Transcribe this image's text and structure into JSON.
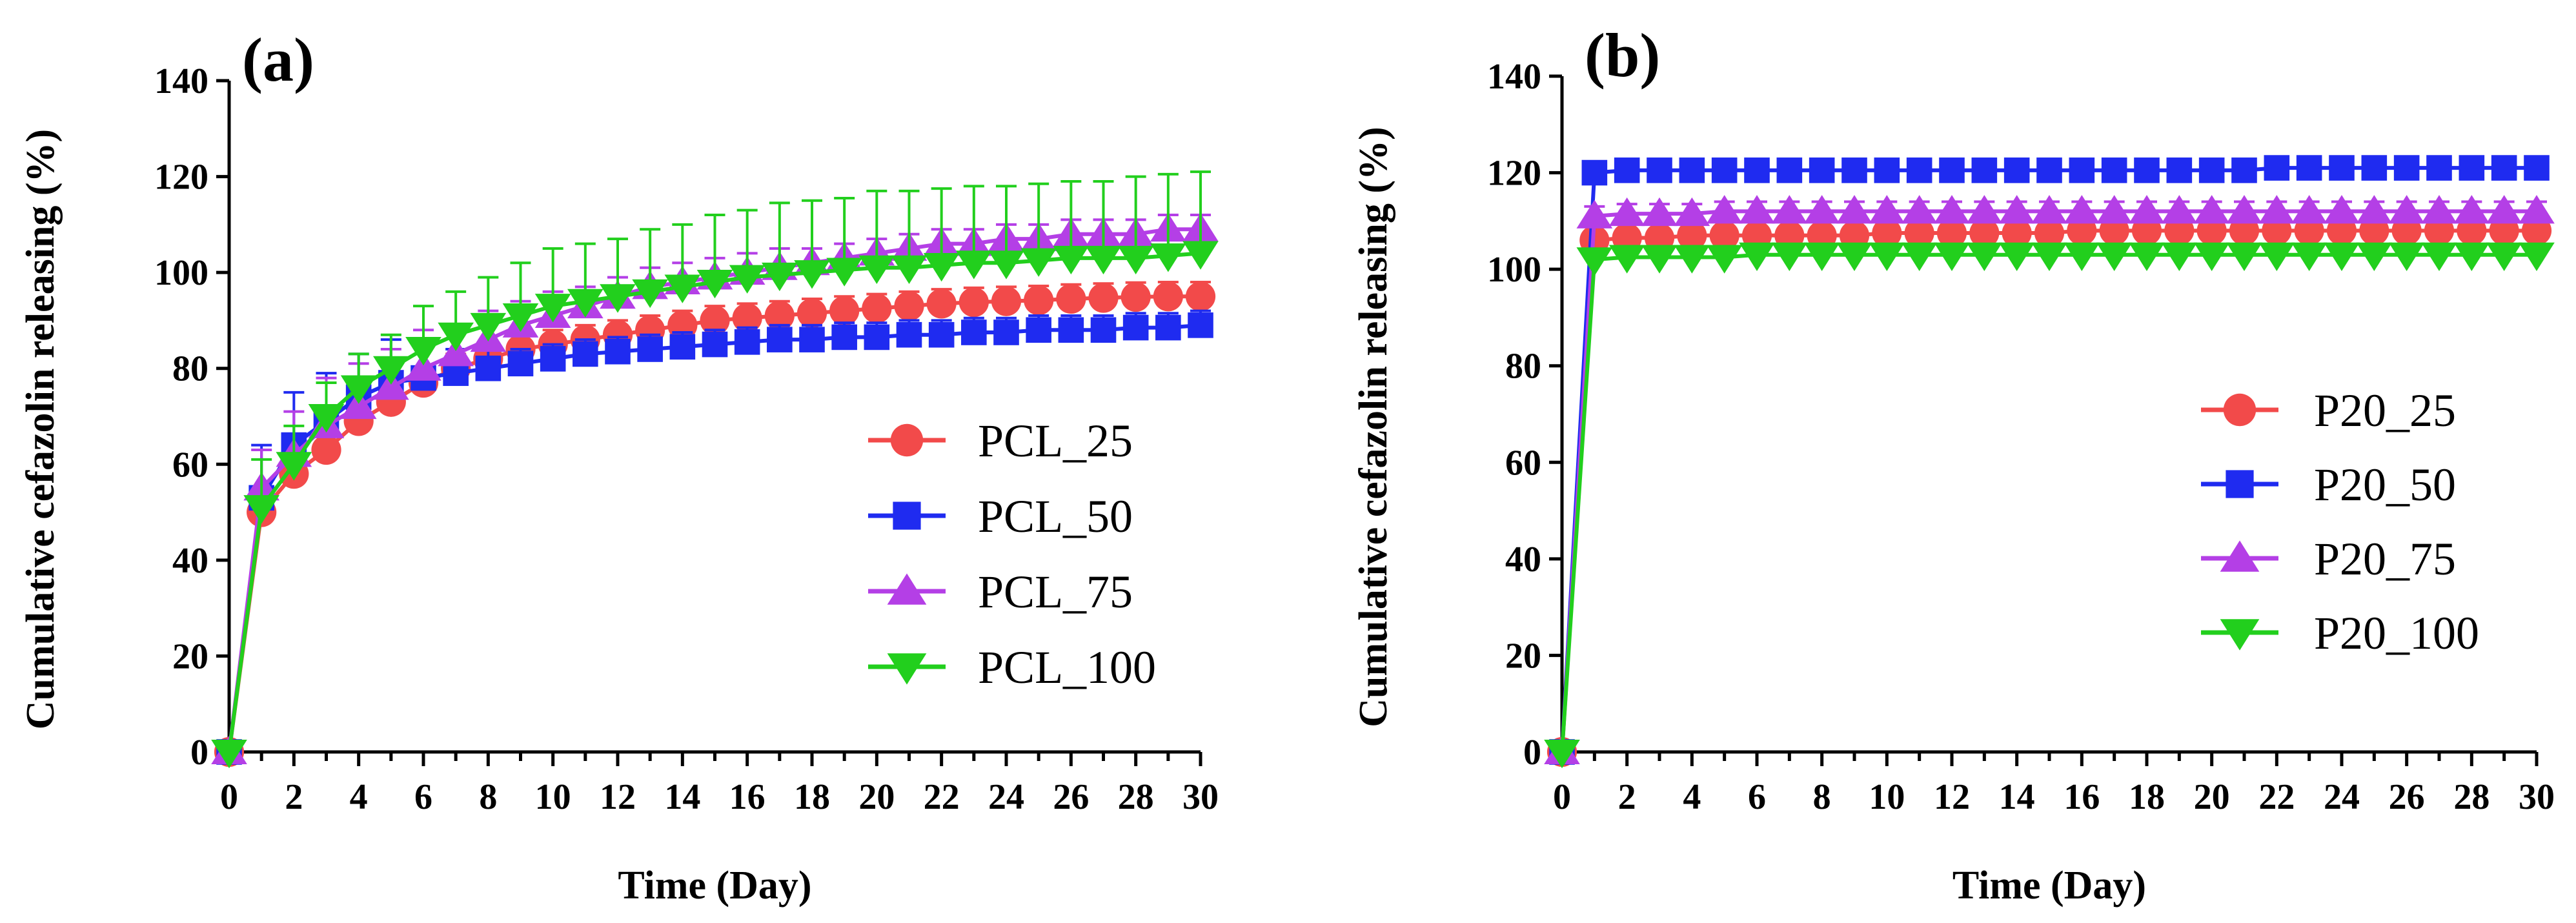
{
  "chart_data": [
    {
      "type": "line",
      "panel_label": "(a)",
      "title": "",
      "xlabel": "Time (Day)",
      "ylabel": "Cumulative cefazolin releasing (%)",
      "xlim": [
        0,
        30
      ],
      "ylim": [
        0,
        140
      ],
      "xticks": [
        "0",
        "2",
        "4",
        "6",
        "8",
        "10",
        "12",
        "14",
        "16",
        "18",
        "20",
        "22",
        "24",
        "26",
        "28",
        "30"
      ],
      "yticks": [
        "0",
        "20",
        "40",
        "60",
        "80",
        "100",
        "120",
        "140"
      ],
      "grid": false,
      "legend_position": "right",
      "x": [
        0,
        1,
        2,
        3,
        4,
        5,
        6,
        7,
        8,
        9,
        10,
        11,
        12,
        13,
        14,
        15,
        16,
        17,
        18,
        19,
        20,
        21,
        22,
        23,
        24,
        25,
        26,
        27,
        28,
        29,
        30
      ],
      "series": [
        {
          "name": "PCL_25",
          "color": "#f24a4a",
          "marker": "circle",
          "values": [
            0,
            50,
            58,
            63,
            69,
            73,
            77,
            80,
            82,
            84,
            85,
            86,
            87,
            88,
            89,
            90,
            90.5,
            91,
            91.5,
            92,
            92.5,
            93,
            93.5,
            93.8,
            94,
            94.2,
            94.5,
            94.7,
            94.9,
            95,
            95
          ],
          "errors": [
            0,
            4,
            3,
            3,
            3,
            3,
            3,
            3,
            3,
            3,
            3,
            3,
            3,
            3,
            3,
            3,
            3,
            3,
            3,
            3,
            3,
            3,
            3,
            3,
            3,
            3,
            3,
            3,
            3,
            3,
            3
          ]
        },
        {
          "name": "PCL_50",
          "color": "#1f2bf0",
          "marker": "square",
          "values": [
            0,
            53,
            64,
            69,
            74,
            77,
            78,
            79,
            80,
            81,
            82,
            83,
            83.5,
            84,
            84.5,
            85,
            85.5,
            86,
            86,
            86.5,
            86.5,
            87,
            87,
            87.5,
            87.5,
            88,
            88,
            88,
            88.5,
            88.5,
            89
          ],
          "errors": [
            0,
            11,
            11,
            10,
            9,
            9,
            8,
            5,
            4,
            3,
            3,
            3,
            3,
            3,
            3,
            3,
            3,
            3,
            3,
            3,
            3,
            3,
            3,
            3,
            3,
            3,
            3,
            3,
            3,
            3,
            3
          ]
        },
        {
          "name": "PCL_75",
          "color": "#b43fe6",
          "marker": "triangle",
          "values": [
            0,
            55,
            62,
            68,
            72,
            76,
            80,
            83,
            86,
            89,
            91,
            93,
            95,
            97,
            98,
            99,
            100,
            101,
            102,
            103,
            104,
            105,
            106,
            106,
            107,
            107,
            108,
            108,
            108,
            109,
            109
          ],
          "errors": [
            0,
            8,
            9,
            10,
            9,
            8,
            8,
            6,
            6,
            5,
            5,
            4,
            4,
            4,
            4,
            4,
            4,
            4,
            3,
            3,
            3,
            3,
            3,
            3,
            3,
            3,
            3,
            3,
            3,
            3,
            3
          ]
        },
        {
          "name": "PCL_100",
          "color": "#22cf1d",
          "marker": "triangle-down",
          "values": [
            0,
            51,
            60,
            70,
            76,
            80,
            84,
            87,
            89,
            91,
            93,
            94,
            95,
            96,
            97,
            98,
            99,
            99.5,
            100,
            100.5,
            101,
            101,
            101.5,
            102,
            102,
            102.5,
            103,
            103,
            103,
            103.5,
            104
          ],
          "errors": [
            0,
            10,
            8,
            7,
            7,
            7,
            9,
            9,
            10,
            11,
            12,
            12,
            12,
            13,
            13,
            14,
            14,
            15,
            15,
            15,
            16,
            16,
            16,
            16,
            16,
            16,
            16,
            16,
            17,
            17,
            17
          ]
        }
      ]
    },
    {
      "type": "line",
      "panel_label": "(b)",
      "title": "",
      "xlabel": "Time (Day)",
      "ylabel": "Cumulative cefazolin releasing (%)",
      "xlim": [
        0,
        30
      ],
      "ylim": [
        0,
        140
      ],
      "xticks": [
        "0",
        "2",
        "4",
        "6",
        "8",
        "10",
        "12",
        "14",
        "16",
        "18",
        "20",
        "22",
        "24",
        "26",
        "28",
        "30"
      ],
      "yticks": [
        "0",
        "20",
        "40",
        "60",
        "80",
        "100",
        "120",
        "140"
      ],
      "grid": false,
      "legend_position": "right",
      "x": [
        0,
        1,
        2,
        3,
        4,
        5,
        6,
        7,
        8,
        9,
        10,
        11,
        12,
        13,
        14,
        15,
        16,
        17,
        18,
        19,
        20,
        21,
        22,
        23,
        24,
        25,
        26,
        27,
        28,
        29,
        30
      ],
      "series": [
        {
          "name": "P20_25",
          "color": "#f24a4a",
          "marker": "circle",
          "values": [
            0,
            106,
            106.5,
            106.5,
            107,
            107,
            107,
            107,
            107,
            107,
            107.5,
            107.5,
            107.5,
            107.5,
            107.5,
            107.5,
            108,
            108,
            108,
            108,
            108,
            108,
            108,
            108,
            108,
            108,
            108,
            108,
            108,
            108,
            108
          ],
          "errors": [
            0,
            3,
            3,
            3,
            3,
            3,
            3,
            3,
            3,
            3,
            3,
            3,
            3,
            3,
            3,
            3,
            3,
            3,
            3,
            3,
            3,
            3,
            3,
            3,
            3,
            3,
            3,
            3,
            3,
            3,
            3
          ]
        },
        {
          "name": "P20_50",
          "color": "#1f2bf0",
          "marker": "square",
          "values": [
            0,
            120,
            120.5,
            120.5,
            120.5,
            120.5,
            120.5,
            120.5,
            120.5,
            120.5,
            120.5,
            120.5,
            120.5,
            120.5,
            120.5,
            120.5,
            120.5,
            120.5,
            120.5,
            120.5,
            120.5,
            120.5,
            121,
            121,
            121,
            121,
            121,
            121,
            121,
            121,
            121
          ],
          "errors": [
            0,
            1,
            1,
            1,
            1,
            1,
            1,
            1,
            1,
            1,
            1,
            1,
            1,
            1,
            1,
            1,
            1,
            1,
            1,
            1,
            1,
            1,
            1,
            1,
            1,
            1,
            1,
            1,
            1,
            1,
            1
          ]
        },
        {
          "name": "P20_75",
          "color": "#b43fe6",
          "marker": "triangle",
          "values": [
            0,
            111,
            111.5,
            111.5,
            111.5,
            112,
            112,
            112,
            112,
            112,
            112,
            112,
            112,
            112,
            112,
            112,
            112,
            112,
            112,
            112,
            112,
            112,
            112,
            112,
            112,
            112,
            112,
            112,
            112,
            112,
            112
          ],
          "errors": [
            0,
            2,
            2,
            2,
            2,
            2,
            2,
            2,
            2,
            2,
            2,
            2,
            2,
            2,
            2,
            2,
            2,
            2,
            2,
            2,
            2,
            2,
            2,
            2,
            2,
            2,
            2,
            2,
            2,
            2,
            2
          ]
        },
        {
          "name": "P20_100",
          "color": "#22cf1d",
          "marker": "triangle-down",
          "values": [
            0,
            102,
            102.5,
            102.5,
            102.5,
            102.5,
            103,
            103,
            103,
            103,
            103,
            103,
            103,
            103,
            103,
            103,
            103,
            103,
            103,
            103,
            103,
            103,
            103,
            103,
            103,
            103,
            103,
            103,
            103,
            103,
            103
          ],
          "errors": [
            0,
            1.5,
            1.5,
            1.5,
            1.5,
            1.5,
            1.5,
            1.5,
            1.5,
            1.5,
            1.5,
            1.5,
            1.5,
            1.5,
            1.5,
            1.5,
            1.5,
            1.5,
            1.5,
            1.5,
            1.5,
            1.5,
            1.5,
            1.5,
            1.5,
            1.5,
            1.5,
            1.5,
            1.5,
            1.5,
            1.5
          ]
        }
      ]
    }
  ]
}
